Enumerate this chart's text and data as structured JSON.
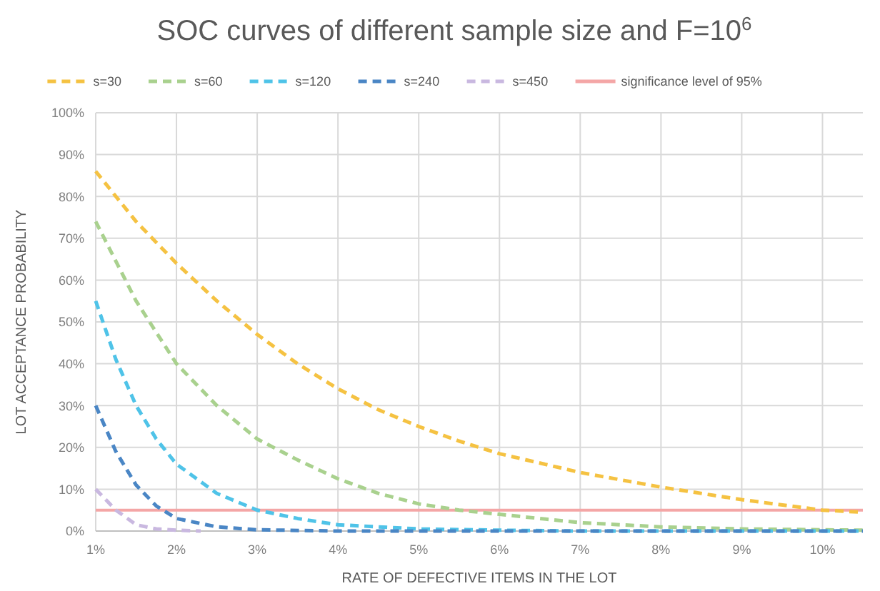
{
  "chart_data": {
    "type": "line",
    "title": "SOC curves of different sample size and F=10$^{6}$",
    "xlabel": "RATE OF DEFECTIVE ITEMS IN THE LOT",
    "ylabel": "LOT ACCEPTANCE PROBABILITY",
    "xlim": [
      1,
      10.5
    ],
    "xticks": [
      {
        "value": 1,
        "label": "1%"
      },
      {
        "value": 2,
        "label": "2%"
      },
      {
        "value": 3,
        "label": "3%"
      },
      {
        "value": 4,
        "label": "4%"
      },
      {
        "value": 5,
        "label": "5%"
      },
      {
        "value": 6,
        "label": "6%"
      },
      {
        "value": 7,
        "label": "7%"
      },
      {
        "value": 8,
        "label": "8%"
      },
      {
        "value": 9,
        "label": "9%"
      },
      {
        "value": 10,
        "label": "10%"
      }
    ],
    "ylim": [
      0,
      100
    ],
    "yticks": [
      {
        "value": 0,
        "label": "0%"
      },
      {
        "value": 10,
        "label": "10%"
      },
      {
        "value": 20,
        "label": "20%"
      },
      {
        "value": 30,
        "label": "30%"
      },
      {
        "value": 40,
        "label": "40%"
      },
      {
        "value": 50,
        "label": "50%"
      },
      {
        "value": 60,
        "label": "60%"
      },
      {
        "value": 70,
        "label": "70%"
      },
      {
        "value": 80,
        "label": "80%"
      },
      {
        "value": 90,
        "label": "90%"
      },
      {
        "value": 100,
        "label": "100%"
      }
    ],
    "grid": true,
    "legend": "top",
    "line_style": "dashed",
    "series": [
      {
        "name": "s=30",
        "color": "#f5c242",
        "x": [
          1,
          1.5,
          2,
          2.5,
          3,
          3.5,
          4,
          4.5,
          5,
          5.5,
          6,
          7,
          8,
          9,
          10,
          10.5
        ],
        "values": [
          86,
          74,
          64,
          55,
          47,
          40,
          34,
          29,
          25,
          21.5,
          18.5,
          14,
          10.5,
          7.5,
          5,
          4.5
        ]
      },
      {
        "name": "s=60",
        "color": "#a9d18e",
        "x": [
          1,
          1.5,
          2,
          2.5,
          3,
          3.5,
          4,
          4.5,
          5,
          5.5,
          6,
          7,
          8,
          9,
          10,
          10.5
        ],
        "values": [
          74,
          55,
          40,
          30,
          22,
          17,
          12.5,
          9,
          6.5,
          5,
          4,
          2,
          1,
          0.5,
          0.3,
          0.2
        ]
      },
      {
        "name": "s=120",
        "color": "#4fc3e8",
        "x": [
          1,
          1.25,
          1.5,
          1.75,
          2,
          2.5,
          3,
          3.5,
          4,
          5,
          6,
          7,
          10.5
        ],
        "values": [
          55,
          41,
          30,
          22,
          16,
          9,
          5,
          3,
          1.5,
          0.5,
          0.2,
          0,
          0
        ]
      },
      {
        "name": "s=240",
        "color": "#4a86c5",
        "x": [
          1,
          1.25,
          1.5,
          1.75,
          2,
          2.5,
          3,
          4,
          10.5
        ],
        "values": [
          30,
          19,
          11,
          6,
          3,
          1,
          0.3,
          0,
          0
        ]
      },
      {
        "name": "s=450",
        "color": "#c9b8e0",
        "x": [
          1,
          1.25,
          1.5,
          1.75,
          2,
          2.3
        ],
        "values": [
          10,
          5,
          1.5,
          0.5,
          0.2,
          0
        ]
      }
    ],
    "ref_lines": [
      {
        "axis": "y",
        "value": 5,
        "label": "significance level of 95%",
        "color": "#f4a6a6",
        "line_style": "solid"
      }
    ]
  }
}
